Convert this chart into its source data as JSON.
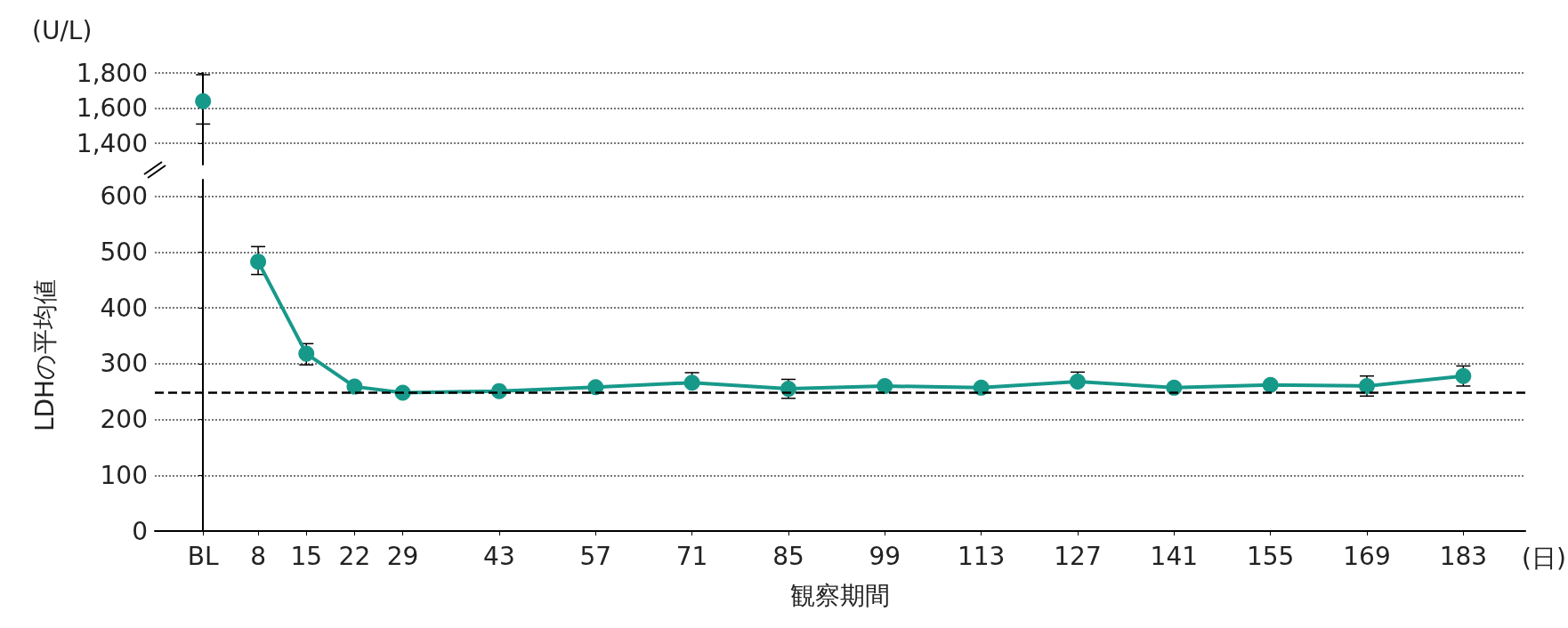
{
  "chart_data": [
    {
      "type": "line",
      "ylim": [
        1280,
        1800
      ],
      "yticks": [
        {
          "value": 1400,
          "label": "1,400"
        },
        {
          "value": 1600,
          "label": "1,600"
        },
        {
          "value": 1800,
          "label": "1,800"
        }
      ],
      "xlim": [
        -7,
        192
      ],
      "tick_labels": "y",
      "grid": "y",
      "marker": "circle",
      "line_style": "solid",
      "annotations": [
        "(U/L)"
      ],
      "series": [
        {
          "color": "#17998a",
          "x": [
            0
          ],
          "values": [
            1640
          ],
          "errors": [
            [
              1510,
              1790
            ]
          ]
        }
      ]
    },
    {
      "type": "line",
      "ylim": [
        0,
        630
      ],
      "yticks": [
        0,
        100,
        200,
        300,
        400,
        500,
        600
      ],
      "xlim": [
        -7,
        192
      ],
      "xticks": [
        {
          "value": 0,
          "label": "BL"
        },
        8,
        15,
        22,
        29,
        43,
        57,
        71,
        85,
        99,
        113,
        127,
        141,
        155,
        169,
        183
      ],
      "grid": "y",
      "marker": "circle",
      "line_style": "solid",
      "xlabel": "観察期間",
      "ylabel": "LDHの平均値",
      "annotations": [
        "(日)"
      ],
      "ref_lines": [
        {
          "axis": "y",
          "value": 248,
          "color": "#000000",
          "line_style": "dashed"
        }
      ],
      "series": [
        {
          "color": "#17998a",
          "x": [
            8,
            15,
            22,
            29,
            43,
            57,
            71,
            85,
            99,
            113,
            127,
            141,
            155,
            169,
            183
          ],
          "values": [
            483,
            318,
            259,
            248,
            251,
            258,
            266,
            255,
            260,
            257,
            268,
            257,
            262,
            260,
            278
          ],
          "errors": [
            [
              460,
              510
            ],
            [
              298,
              336
            ],
            null,
            null,
            null,
            null,
            [
              266,
              284
            ],
            [
              238,
              272
            ],
            null,
            null,
            [
              268,
              285
            ],
            null,
            null,
            [
              242,
              278
            ],
            [
              260,
              296
            ]
          ]
        }
      ]
    }
  ]
}
